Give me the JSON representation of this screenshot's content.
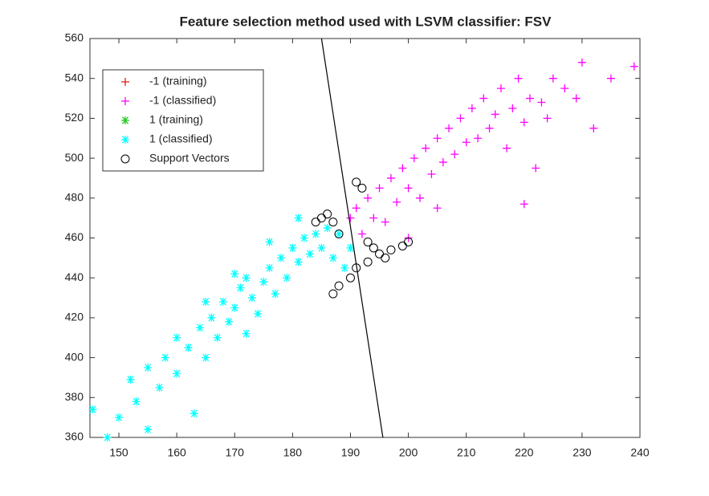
{
  "chart_data": {
    "type": "scatter",
    "title": "Feature selection method used with LSVM classifier: FSV",
    "xlim": [
      145,
      240
    ],
    "ylim": [
      360,
      560
    ],
    "xticks": [
      150,
      160,
      170,
      180,
      190,
      200,
      210,
      220,
      230,
      240
    ],
    "yticks": [
      360,
      380,
      400,
      420,
      440,
      460,
      480,
      500,
      520,
      540,
      560
    ],
    "legend_position": "upper-left",
    "boundary": {
      "color": "#000000",
      "x": [
        185,
        195.6
      ],
      "y": [
        560,
        360
      ]
    },
    "series": [
      {
        "name": "-1 (training)",
        "color": "#e41a1c",
        "marker": "plus",
        "x": [],
        "y": []
      },
      {
        "name": "-1 (classified)",
        "color": "#ff00ff",
        "marker": "plus",
        "x": [
          190,
          191,
          192,
          193,
          194,
          195,
          196,
          197,
          198,
          199,
          200,
          201,
          202,
          203,
          204,
          205,
          206,
          207,
          208,
          209,
          210,
          211,
          212,
          213,
          214,
          215,
          216,
          217,
          218,
          219,
          220,
          221,
          222,
          223,
          224,
          225,
          227,
          229,
          230,
          232,
          235,
          239,
          220,
          200,
          205
        ],
        "y": [
          470,
          475,
          462,
          480,
          470,
          485,
          468,
          490,
          478,
          495,
          485,
          500,
          480,
          505,
          492,
          510,
          498,
          515,
          502,
          520,
          508,
          525,
          510,
          530,
          515,
          522,
          535,
          505,
          525,
          540,
          518,
          530,
          495,
          528,
          520,
          540,
          535,
          530,
          548,
          515,
          540,
          546,
          477,
          460,
          475
        ]
      },
      {
        "name": "1 (training)",
        "color": "#22cc22",
        "marker": "star",
        "x": [],
        "y": []
      },
      {
        "name": "1 (classified)",
        "color": "#00ffff",
        "marker": "star",
        "x": [
          145.5,
          148,
          150,
          152,
          153,
          155,
          155,
          157,
          158,
          160,
          160,
          162,
          163,
          164,
          165,
          166,
          167,
          168,
          169,
          170,
          171,
          172,
          172,
          173,
          174,
          175,
          176,
          177,
          178,
          179,
          180,
          181,
          182,
          183,
          184,
          185,
          186,
          187,
          188,
          189,
          190,
          181,
          176,
          170,
          165
        ],
        "y": [
          374,
          360,
          370,
          389,
          378,
          364,
          395,
          385,
          400,
          392,
          410,
          405,
          372,
          415,
          400,
          420,
          410,
          428,
          418,
          425,
          435,
          412,
          440,
          430,
          422,
          438,
          445,
          432,
          450,
          440,
          455,
          448,
          460,
          452,
          462,
          455,
          465,
          450,
          462,
          445,
          455,
          470,
          458,
          442,
          428
        ]
      },
      {
        "name": "Support Vectors",
        "color": "#000000",
        "marker": "circle",
        "x": [
          184,
          185,
          186,
          187,
          188,
          191,
          192,
          193,
          194,
          195,
          196,
          197,
          199,
          200,
          188,
          190,
          187,
          191,
          193
        ],
        "y": [
          468,
          470,
          472,
          468,
          462,
          488,
          485,
          458,
          455,
          452,
          450,
          454,
          456,
          458,
          436,
          440,
          432,
          445,
          448
        ]
      }
    ]
  }
}
